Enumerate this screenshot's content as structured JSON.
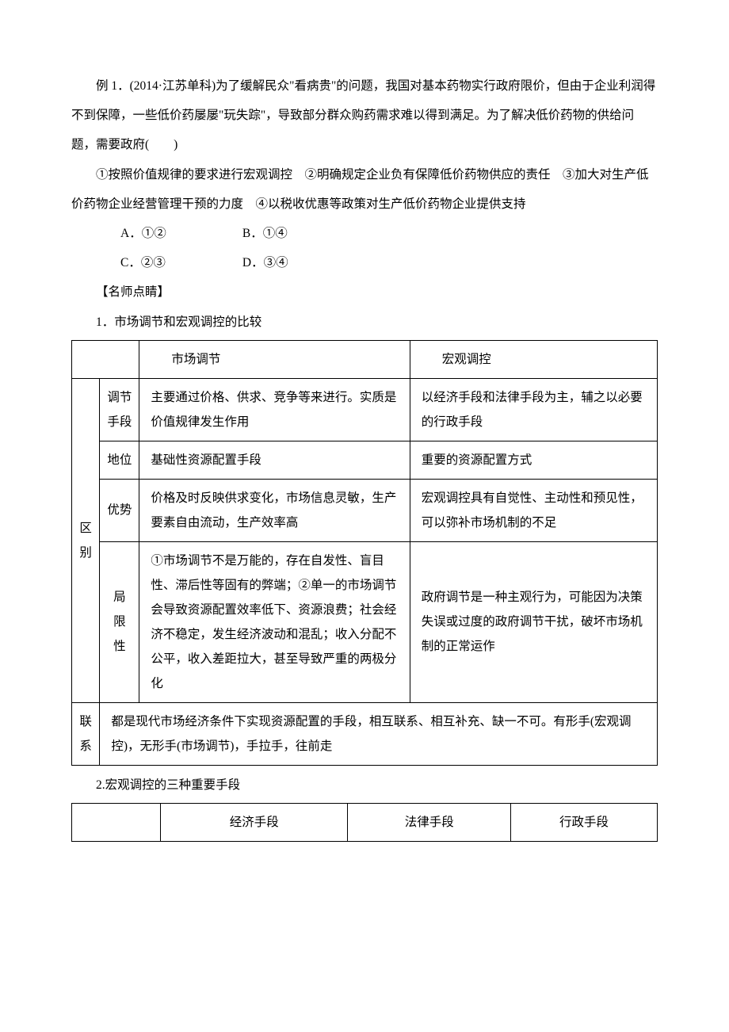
{
  "question": {
    "stem": "例 1．(2014·江苏单科)为了缓解民众\"看病贵\"的问题，我国对基本药物实行政府限价，但由于企业利润得不到保障，一些低价药屡屡\"玩失踪\"，导致部分群众购药需求难以得到满足。为了解决低价药物的供给问题，需要政府(　　)",
    "statements": "①按照价值规律的要求进行宏观调控　②明确规定企业负有保障低价药物供应的责任　③加大对生产低价药物企业经营管理干预的力度　④以税收优惠等政策对生产低价药物企业提供支持",
    "options": {
      "A": "A．①②",
      "B": "B．①④",
      "C": "C．②③",
      "D": "D．③④"
    }
  },
  "commentary_title": "【名师点睛】",
  "section1_title": "1．市场调节和宏观调控的比较",
  "table1": {
    "col1": "市场调节",
    "col2": "宏观调控",
    "row_group_diff": "区别",
    "rows": [
      {
        "label": "调节手段",
        "c1": "主要通过价格、供求、竞争等来进行。实质是价值规律发生作用",
        "c2": "以经济手段和法律手段为主，辅之以必要的行政手段"
      },
      {
        "label": "地位",
        "c1": "基础性资源配置手段",
        "c2": "重要的资源配置方式"
      },
      {
        "label": "优势",
        "c1": "价格及时反映供求变化，市场信息灵敏，生产要素自由流动，生产效率高",
        "c2": "宏观调控具有自觉性、主动性和预见性，可以弥补市场机制的不足"
      },
      {
        "label": "局限性",
        "c1": "①市场调节不是万能的，存在自发性、盲目性、滞后性等固有的弊端；②单一的市场调节会导致资源配置效率低下、资源浪费；社会经济不稳定，发生经济波动和混乱；收入分配不公平，收入差距拉大，甚至导致严重的两极分化",
        "c2": "政府调节是一种主观行为，可能因为决策失误或过度的政府调节干扰，破坏市场机制的正常运作"
      }
    ],
    "row_group_link": "联系",
    "link_text": "都是现代市场经济条件下实现资源配置的手段，相互联系、相互补充、缺一不可。有形手(宏观调控)，无形手(市场调节)，手拉手，往前走"
  },
  "section2_title": "2.宏观调控的三种重要手段",
  "table2": {
    "h1": "经济手段",
    "h2": "法律手段",
    "h3": "行政手段"
  },
  "layout": {
    "table1_col_widths": [
      "34px",
      "48px",
      "328px",
      "300px"
    ],
    "table2_col_widths": [
      "108px",
      "230px",
      "200px",
      "180px"
    ]
  }
}
